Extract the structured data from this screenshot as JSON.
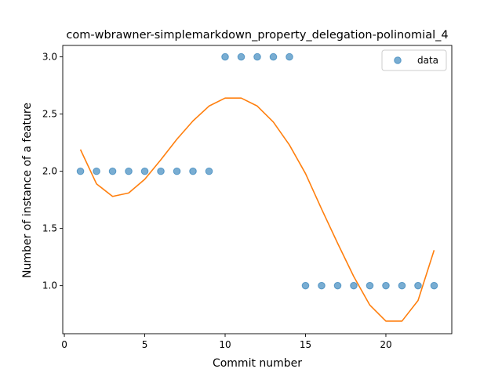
{
  "chart_data": {
    "type": "scatter",
    "title": "com-wbrawner-simplemarkdown_property_delegation-polinomial_4",
    "xlabel": "Commit number",
    "ylabel": "Number of instance of a feature",
    "xlim": [
      -0.1,
      24.1
    ],
    "ylim": [
      0.58,
      3.1
    ],
    "xticks": [
      0,
      5,
      10,
      15,
      20
    ],
    "xtick_labels": [
      "0",
      "5",
      "10",
      "15",
      "20"
    ],
    "yticks": [
      1.0,
      1.5,
      2.0,
      2.5,
      3.0
    ],
    "ytick_labels": [
      "1.0",
      "1.5",
      "2.0",
      "2.5",
      "3.0"
    ],
    "grid": false,
    "legend_position": "top-right",
    "series": [
      {
        "name": "data",
        "kind": "scatter",
        "color": "#1f77b4",
        "x": [
          1,
          2,
          3,
          4,
          5,
          6,
          7,
          8,
          9,
          10,
          11,
          12,
          13,
          14,
          15,
          16,
          17,
          18,
          19,
          20,
          21,
          22,
          23
        ],
        "y": [
          2,
          2,
          2,
          2,
          2,
          2,
          2,
          2,
          2,
          3,
          3,
          3,
          3,
          3,
          1,
          1,
          1,
          1,
          1,
          1,
          1,
          1,
          1
        ]
      },
      {
        "kind": "line",
        "color": "#ff7f0e",
        "x": [
          1,
          2,
          3,
          4,
          5,
          6,
          7,
          8,
          9,
          10,
          11,
          12,
          13,
          14,
          15,
          16,
          17,
          18,
          19,
          20,
          21,
          22,
          23
        ],
        "y": [
          2.19,
          1.89,
          1.78,
          1.81,
          1.93,
          2.1,
          2.28,
          2.44,
          2.57,
          2.64,
          2.64,
          2.57,
          2.43,
          2.23,
          1.98,
          1.67,
          1.37,
          1.08,
          0.83,
          0.69,
          0.69,
          0.87,
          1.31
        ]
      }
    ]
  }
}
